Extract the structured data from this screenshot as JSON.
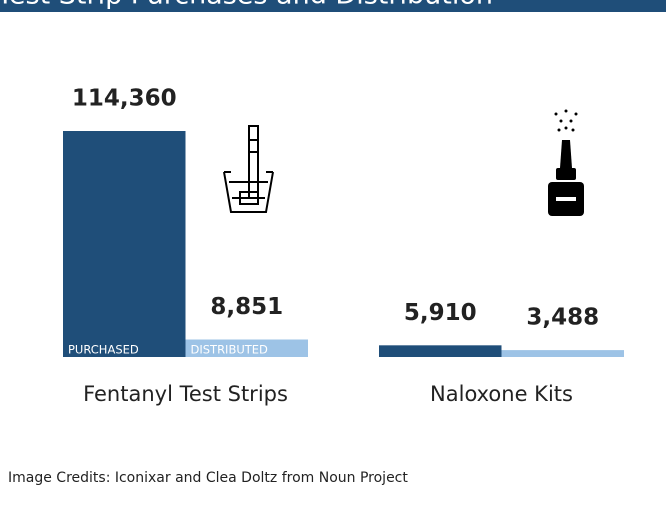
{
  "chart_data": {
    "type": "bar",
    "title": "Test Strip Purchases and Distribution",
    "categories": [
      "Fentanyl Test Strips",
      "Naloxone Kits"
    ],
    "series": [
      {
        "name": "PURCHASED",
        "color": "#1f4e79",
        "values": [
          114360,
          5910
        ],
        "value_labels": [
          "114,360",
          "5,910"
        ]
      },
      {
        "name": "DISTRIBUTED",
        "color": "#9dc3e6",
        "values": [
          8851,
          3488
        ],
        "value_labels": [
          "8,851",
          "3,488"
        ]
      }
    ],
    "credits": "Image Credits: Iconixar and Clea Doltz from Noun Project"
  }
}
